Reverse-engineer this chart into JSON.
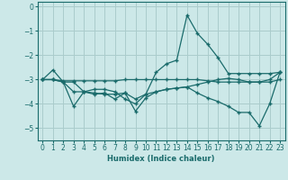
{
  "xlabel": "Humidex (Indice chaleur)",
  "bg_color": "#cce8e8",
  "grid_color": "#aacccc",
  "line_color": "#1a6b6b",
  "x_min": -0.5,
  "x_max": 23.5,
  "y_min": -5.5,
  "y_max": 0.2,
  "yticks": [
    0,
    -1,
    -2,
    -3,
    -4,
    -5
  ],
  "lines": [
    {
      "x": [
        0,
        1,
        2,
        3,
        4,
        5,
        6,
        7,
        8,
        9,
        10,
        11,
        12,
        13,
        14,
        15,
        16,
        17,
        18,
        19,
        20,
        21,
        22,
        23
      ],
      "y": [
        -3.0,
        -2.6,
        -3.1,
        -3.1,
        -3.5,
        -3.4,
        -3.4,
        -3.5,
        -3.8,
        -4.0,
        -3.6,
        -2.7,
        -2.35,
        -2.2,
        -0.35,
        -1.1,
        -1.55,
        -2.1,
        -2.75,
        -2.75,
        -2.75,
        -2.75,
        -2.75,
        -2.7
      ]
    },
    {
      "x": [
        0,
        1,
        2,
        3,
        4,
        5,
        6,
        7,
        8,
        9,
        10,
        11,
        12,
        13,
        14,
        15,
        16,
        17,
        18,
        19,
        20,
        21,
        22,
        23
      ],
      "y": [
        -3.0,
        -3.0,
        -3.05,
        -3.05,
        -3.05,
        -3.05,
        -3.05,
        -3.05,
        -3.0,
        -3.0,
        -3.0,
        -3.0,
        -3.0,
        -3.0,
        -3.0,
        -3.0,
        -3.05,
        -3.1,
        -3.1,
        -3.1,
        -3.1,
        -3.1,
        -3.1,
        -3.0
      ]
    },
    {
      "x": [
        0,
        1,
        2,
        3,
        4,
        5,
        6,
        7,
        8,
        9,
        10,
        11,
        12,
        13,
        14,
        15,
        16,
        17,
        18,
        19,
        20,
        21,
        22,
        23
      ],
      "y": [
        -3.0,
        -3.0,
        -3.1,
        -3.5,
        -3.5,
        -3.55,
        -3.6,
        -3.6,
        -3.55,
        -3.8,
        -3.6,
        -3.5,
        -3.4,
        -3.35,
        -3.3,
        -3.2,
        -3.1,
        -3.0,
        -2.95,
        -3.0,
        -3.1,
        -3.1,
        -3.0,
        -2.7
      ]
    },
    {
      "x": [
        0,
        1,
        2,
        3,
        4,
        5,
        6,
        7,
        8,
        9,
        10,
        11,
        12,
        13,
        14,
        15,
        16,
        17,
        18,
        19,
        20,
        21,
        22,
        23
      ],
      "y": [
        -3.0,
        -3.0,
        -3.1,
        -4.1,
        -3.5,
        -3.6,
        -3.55,
        -3.8,
        -3.55,
        -4.3,
        -3.75,
        -3.5,
        -3.4,
        -3.35,
        -3.3,
        -3.55,
        -3.75,
        -3.9,
        -4.1,
        -4.35,
        -4.35,
        -4.9,
        -4.0,
        -2.7
      ]
    }
  ]
}
